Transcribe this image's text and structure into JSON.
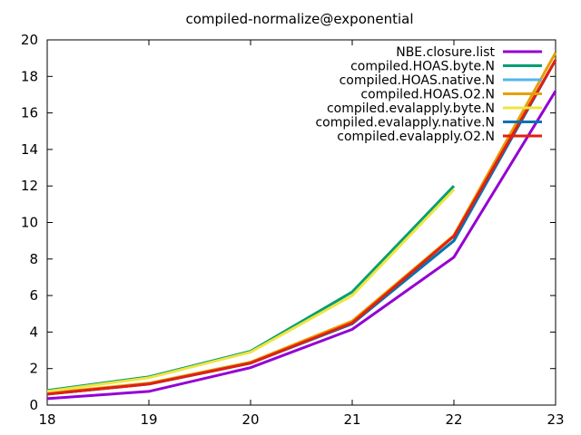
{
  "chart_data": {
    "type": "line",
    "title": "compiled-normalize@exponential",
    "xlabel": "",
    "ylabel": "",
    "xlim": [
      18,
      23
    ],
    "ylim": [
      0,
      20
    ],
    "x_ticks": [
      "18",
      "19",
      "20",
      "21",
      "22",
      "23"
    ],
    "y_ticks": [
      "0",
      "2",
      "4",
      "6",
      "8",
      "10",
      "12",
      "14",
      "16",
      "18",
      "20"
    ],
    "grid": false,
    "legend_position": "top-right",
    "series": [
      {
        "name": "NBE.closure.list",
        "color": "#9400d3",
        "x": [
          18,
          19,
          20,
          21,
          22,
          23
        ],
        "values": [
          0.35,
          0.75,
          2.05,
          4.15,
          8.1,
          17.2
        ]
      },
      {
        "name": "compiled.HOAS.byte.N",
        "color": "#009e73",
        "x": [
          18,
          19,
          20,
          21,
          22
        ],
        "values": [
          0.8,
          1.55,
          2.95,
          6.2,
          12.0
        ]
      },
      {
        "name": "compiled.HOAS.native.N",
        "color": "#56b4e9",
        "x": [
          18,
          19,
          20,
          21,
          22,
          23
        ],
        "values": [
          0.6,
          1.15,
          2.3,
          4.5,
          9.0,
          18.9
        ]
      },
      {
        "name": "compiled.HOAS.O2.N",
        "color": "#e69f00",
        "x": [
          18,
          19,
          20,
          21,
          22,
          23
        ],
        "values": [
          0.65,
          1.2,
          2.35,
          4.6,
          9.3,
          19.3
        ]
      },
      {
        "name": "compiled.evalapply.byte.N",
        "color": "#f0e442",
        "x": [
          18,
          19,
          20,
          21,
          22
        ],
        "values": [
          0.75,
          1.5,
          2.9,
          6.0,
          11.8
        ]
      },
      {
        "name": "compiled.evalapply.native.N",
        "color": "#0072b2",
        "x": [
          18,
          19,
          20,
          21,
          22,
          23
        ],
        "values": [
          0.6,
          1.15,
          2.3,
          4.45,
          9.0,
          18.9
        ]
      },
      {
        "name": "compiled.evalapply.O2.N",
        "color": "#e51e10",
        "x": [
          18,
          19,
          20,
          21,
          22,
          23
        ],
        "values": [
          0.6,
          1.15,
          2.3,
          4.5,
          9.25,
          18.9
        ]
      }
    ]
  }
}
